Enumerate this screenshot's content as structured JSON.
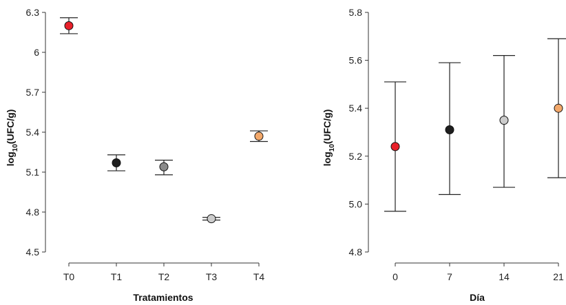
{
  "chart_data": [
    {
      "type": "scatter",
      "title": "",
      "xlabel": "Tratamientos",
      "ylabel_main": "log",
      "ylabel_sub": "10",
      "ylabel_rest": "(UFC/g)",
      "categories": [
        "T0",
        "T1",
        "T2",
        "T3",
        "T4"
      ],
      "values": [
        6.2,
        5.17,
        5.14,
        4.75,
        5.37
      ],
      "error_low": [
        6.14,
        5.11,
        5.08,
        4.74,
        5.33
      ],
      "error_high": [
        6.26,
        5.23,
        5.19,
        4.76,
        5.41
      ],
      "colors": [
        "#e8202a",
        "#1e1e1e",
        "#8a8a8a",
        "#cccccc",
        "#f3a86a"
      ],
      "ylim": [
        4.5,
        6.3
      ],
      "yticks": [
        "4.5",
        "4.8",
        "5.1",
        "5.4",
        "5.7",
        "6",
        "6.3"
      ],
      "yticks_num": [
        4.5,
        4.8,
        5.1,
        5.4,
        5.7,
        6.0,
        6.3
      ],
      "grid": false
    },
    {
      "type": "scatter",
      "title": "",
      "xlabel": "Día",
      "ylabel_main": "log",
      "ylabel_sub": "10",
      "ylabel_rest": "(UFC/g)",
      "categories": [
        "0",
        "7",
        "14",
        "21"
      ],
      "values": [
        5.24,
        5.31,
        5.35,
        5.4
      ],
      "error_low": [
        4.97,
        5.04,
        5.07,
        5.11
      ],
      "error_high": [
        5.51,
        5.59,
        5.62,
        5.69
      ],
      "colors": [
        "#e8202a",
        "#1e1e1e",
        "#cccccc",
        "#f3a86a"
      ],
      "ylim": [
        4.8,
        5.8
      ],
      "yticks": [
        "4.8",
        "5.0",
        "5.2",
        "5.4",
        "5.6",
        "5.8"
      ],
      "yticks_num": [
        4.8,
        5.0,
        5.2,
        5.4,
        5.6,
        5.8
      ],
      "grid": false
    }
  ]
}
